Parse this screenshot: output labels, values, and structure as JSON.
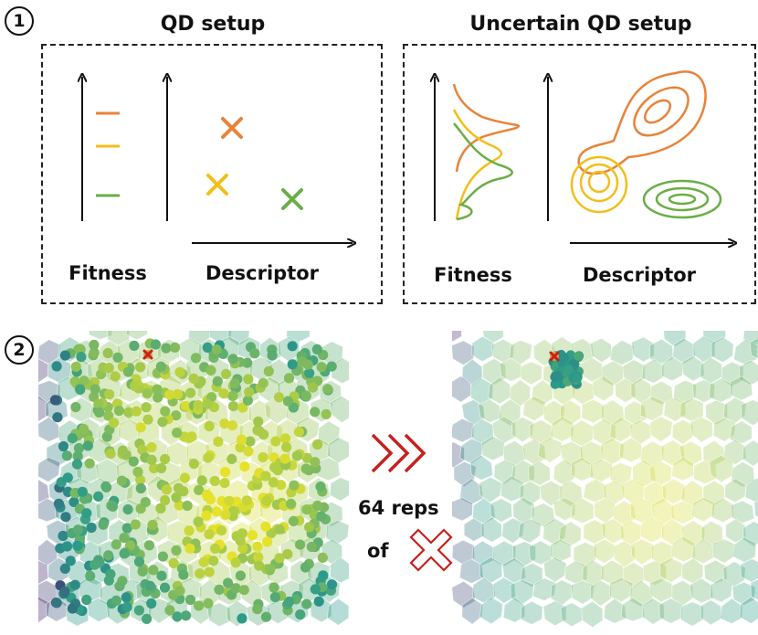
{
  "step1": {
    "badge": "1"
  },
  "step2": {
    "badge": "2"
  },
  "qd_setup": {
    "title": "QD setup",
    "fitness_label": "Fitness",
    "descriptor_label": "Descriptor"
  },
  "uncertain_qd_setup": {
    "title": "Uncertain QD setup",
    "fitness_label": "Fitness",
    "descriptor_label": "Descriptor"
  },
  "reps": {
    "line1": "64 reps",
    "line2": "of"
  },
  "colors": {
    "orange": "#e8833a",
    "yellow": "#f2bf1a",
    "green": "#6aae45",
    "red": "#c8201c",
    "map_low": "#46256d",
    "map_mid": "#2a9a8a",
    "map_high": "#e6e22a"
  }
}
